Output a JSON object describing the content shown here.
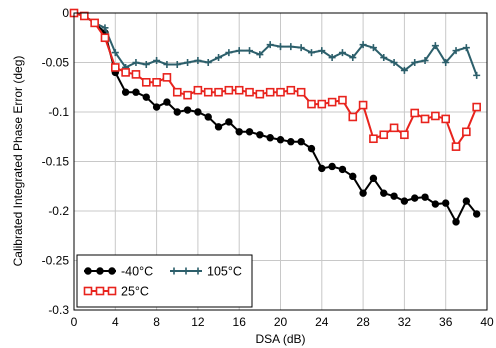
{
  "chart_data": {
    "type": "line",
    "xlabel": "DSA (dB)",
    "ylabel": "Calibrated Integrated Phase Error (deg)",
    "xlim": [
      0,
      40
    ],
    "ylim": [
      -0.3,
      0
    ],
    "x_ticks": [
      0,
      4,
      8,
      12,
      16,
      20,
      24,
      28,
      32,
      36,
      40
    ],
    "y_ticks": [
      0,
      -0.05,
      -0.1,
      -0.15,
      -0.2,
      -0.25,
      -0.3
    ],
    "y_tick_labels": [
      "0",
      "-0.05",
      "-0.1",
      "-0.15",
      "-0.2",
      "-0.25",
      "-0.3"
    ],
    "grid": true,
    "legend_position": "bottom-left",
    "x": [
      0,
      1,
      2,
      3,
      4,
      5,
      6,
      7,
      8,
      9,
      10,
      11,
      12,
      13,
      14,
      15,
      16,
      17,
      18,
      19,
      20,
      21,
      22,
      23,
      24,
      25,
      26,
      27,
      28,
      29,
      30,
      31,
      32,
      33,
      34,
      35,
      36,
      37,
      38,
      39
    ],
    "series": [
      {
        "name": "-40°C",
        "color": "#000000",
        "marker": "filled-circle",
        "values": [
          0,
          -0.003,
          -0.01,
          -0.02,
          -0.06,
          -0.08,
          -0.08,
          -0.085,
          -0.095,
          -0.09,
          -0.1,
          -0.098,
          -0.1,
          -0.105,
          -0.115,
          -0.11,
          -0.12,
          -0.12,
          -0.123,
          -0.126,
          -0.128,
          -0.13,
          -0.13,
          -0.137,
          -0.157,
          -0.155,
          -0.158,
          -0.165,
          -0.182,
          -0.167,
          -0.182,
          -0.185,
          -0.19,
          -0.187,
          -0.186,
          -0.193,
          -0.192,
          -0.211,
          -0.19,
          -0.203
        ]
      },
      {
        "name": "105°C",
        "color": "#2c5f6b",
        "marker": "plus",
        "values": [
          0,
          -0.003,
          -0.01,
          -0.015,
          -0.04,
          -0.055,
          -0.05,
          -0.052,
          -0.048,
          -0.052,
          -0.052,
          -0.05,
          -0.048,
          -0.05,
          -0.045,
          -0.04,
          -0.038,
          -0.038,
          -0.042,
          -0.032,
          -0.034,
          -0.034,
          -0.035,
          -0.04,
          -0.038,
          -0.045,
          -0.04,
          -0.045,
          -0.032,
          -0.035,
          -0.045,
          -0.05,
          -0.058,
          -0.05,
          -0.048,
          -0.033,
          -0.05,
          -0.038,
          -0.035,
          -0.063
        ]
      },
      {
        "name": "25°C",
        "color": "#e8231d",
        "marker": "open-square",
        "values": [
          0,
          -0.003,
          -0.01,
          -0.025,
          -0.055,
          -0.06,
          -0.062,
          -0.07,
          -0.07,
          -0.065,
          -0.08,
          -0.083,
          -0.078,
          -0.08,
          -0.08,
          -0.078,
          -0.078,
          -0.08,
          -0.082,
          -0.08,
          -0.08,
          -0.078,
          -0.08,
          -0.092,
          -0.092,
          -0.09,
          -0.088,
          -0.105,
          -0.093,
          -0.127,
          -0.123,
          -0.116,
          -0.123,
          -0.101,
          -0.107,
          -0.104,
          -0.107,
          -0.135,
          -0.12,
          -0.095
        ]
      }
    ]
  }
}
